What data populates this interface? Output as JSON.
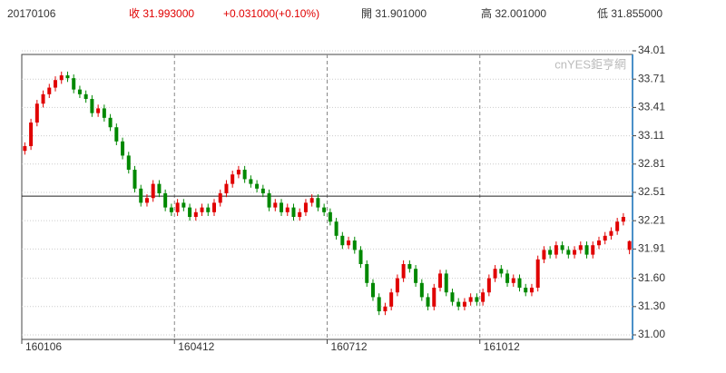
{
  "chart_data": {
    "type": "candlestick",
    "header": {
      "date": "20170106",
      "close": "收 31.993000",
      "change": "+0.031000(+0.10%)",
      "open": "開 31.901000",
      "high": "高 32.001000",
      "low": "低 31.855000"
    },
    "watermark": "cnYES鉅亨網",
    "categories": [
      "160106",
      null,
      null,
      null,
      null,
      null,
      null,
      null,
      null,
      null,
      null,
      null,
      null,
      null,
      null,
      null,
      null,
      null,
      null,
      null,
      null,
      null,
      null,
      null,
      null,
      "160412",
      null,
      null,
      null,
      null,
      null,
      null,
      null,
      null,
      null,
      null,
      null,
      null,
      null,
      null,
      null,
      null,
      null,
      null,
      null,
      null,
      null,
      null,
      null,
      null,
      "160712",
      null,
      null,
      null,
      null,
      null,
      null,
      null,
      null,
      null,
      null,
      null,
      null,
      null,
      null,
      null,
      null,
      null,
      null,
      null,
      null,
      null,
      null,
      null,
      null,
      "161012",
      null,
      null,
      null,
      null,
      null,
      null,
      null,
      null,
      null,
      null,
      null,
      null,
      null,
      null,
      null,
      null,
      null,
      null,
      null,
      null,
      null,
      null,
      null,
      null
    ],
    "open": [
      32.95,
      33.0,
      33.25,
      33.45,
      33.55,
      33.62,
      33.7,
      33.75,
      33.72,
      33.6,
      33.55,
      33.5,
      33.35,
      33.4,
      33.3,
      33.2,
      33.05,
      32.9,
      32.75,
      32.55,
      32.4,
      32.45,
      32.6,
      32.5,
      32.35,
      32.3,
      32.4,
      32.35,
      32.25,
      32.3,
      32.35,
      32.3,
      32.4,
      32.5,
      32.6,
      32.7,
      32.75,
      32.65,
      32.6,
      32.55,
      32.5,
      32.35,
      32.4,
      32.3,
      32.35,
      32.25,
      32.3,
      32.4,
      32.45,
      32.35,
      32.3,
      32.2,
      32.05,
      31.95,
      32.0,
      31.9,
      31.75,
      31.55,
      31.4,
      31.25,
      31.3,
      31.45,
      31.6,
      31.75,
      31.7,
      31.55,
      31.4,
      31.3,
      31.5,
      31.65,
      31.45,
      31.35,
      31.3,
      31.35,
      31.4,
      31.35,
      31.45,
      31.6,
      31.7,
      31.65,
      31.55,
      31.6,
      31.5,
      31.45,
      31.5,
      31.8,
      31.9,
      31.85,
      31.95,
      31.9,
      31.85,
      31.9,
      31.95,
      31.85,
      31.95,
      32.0,
      32.05,
      32.1,
      32.2,
      31.901
    ],
    "high": [
      33.04,
      33.29,
      33.49,
      33.59,
      33.66,
      33.74,
      33.79,
      33.79,
      33.76,
      33.64,
      33.59,
      33.54,
      33.44,
      33.44,
      33.34,
      33.24,
      33.09,
      32.94,
      32.79,
      32.59,
      32.49,
      32.64,
      32.64,
      32.54,
      32.39,
      32.44,
      32.44,
      32.39,
      32.34,
      32.39,
      32.39,
      32.44,
      32.54,
      32.64,
      32.74,
      32.79,
      32.79,
      32.69,
      32.64,
      32.59,
      32.54,
      32.44,
      32.44,
      32.39,
      32.39,
      32.34,
      32.44,
      32.49,
      32.49,
      32.39,
      32.34,
      32.24,
      32.09,
      32.04,
      32.04,
      31.94,
      31.79,
      31.59,
      31.44,
      31.34,
      31.49,
      31.64,
      31.79,
      31.79,
      31.74,
      31.59,
      31.44,
      31.54,
      31.69,
      31.69,
      31.49,
      31.39,
      31.39,
      31.44,
      31.44,
      31.49,
      31.64,
      31.74,
      31.74,
      31.69,
      31.64,
      31.64,
      31.54,
      31.54,
      31.84,
      31.94,
      31.94,
      31.99,
      31.99,
      31.94,
      31.94,
      31.99,
      31.99,
      31.99,
      32.04,
      32.09,
      32.14,
      32.24,
      32.29,
      32.001
    ],
    "low": [
      32.91,
      32.96,
      33.21,
      33.41,
      33.51,
      33.58,
      33.66,
      33.68,
      33.56,
      33.51,
      33.46,
      33.31,
      33.31,
      33.26,
      33.16,
      33.01,
      32.86,
      32.71,
      32.51,
      32.36,
      32.36,
      32.41,
      32.46,
      32.31,
      32.26,
      32.26,
      32.31,
      32.21,
      32.21,
      32.26,
      32.26,
      32.26,
      32.36,
      32.46,
      32.56,
      32.66,
      32.61,
      32.56,
      32.51,
      32.46,
      32.31,
      32.31,
      32.26,
      32.26,
      32.21,
      32.21,
      32.26,
      32.36,
      32.31,
      32.26,
      32.16,
      32.01,
      31.91,
      31.91,
      31.86,
      31.71,
      31.51,
      31.36,
      31.21,
      31.21,
      31.26,
      31.41,
      31.56,
      31.66,
      31.51,
      31.36,
      31.26,
      31.26,
      31.46,
      31.41,
      31.31,
      31.26,
      31.26,
      31.31,
      31.31,
      31.31,
      31.41,
      31.56,
      31.61,
      31.51,
      31.51,
      31.46,
      31.41,
      31.41,
      31.46,
      31.76,
      31.81,
      31.81,
      31.86,
      31.81,
      31.81,
      31.86,
      31.81,
      31.81,
      31.91,
      31.96,
      32.01,
      32.06,
      32.16,
      31.855
    ],
    "close": [
      33.0,
      33.25,
      33.45,
      33.55,
      33.62,
      33.7,
      33.75,
      33.72,
      33.6,
      33.55,
      33.5,
      33.35,
      33.4,
      33.3,
      33.2,
      33.05,
      32.9,
      32.75,
      32.55,
      32.4,
      32.45,
      32.6,
      32.5,
      32.35,
      32.3,
      32.4,
      32.35,
      32.25,
      32.3,
      32.35,
      32.3,
      32.4,
      32.5,
      32.6,
      32.7,
      32.75,
      32.65,
      32.6,
      32.55,
      32.5,
      32.35,
      32.4,
      32.3,
      32.35,
      32.25,
      32.3,
      32.4,
      32.45,
      32.35,
      32.3,
      32.2,
      32.05,
      31.95,
      32.0,
      31.9,
      31.75,
      31.55,
      31.4,
      31.25,
      31.3,
      31.45,
      31.6,
      31.75,
      31.7,
      31.55,
      31.4,
      31.3,
      31.5,
      31.65,
      31.45,
      31.35,
      31.3,
      31.35,
      31.4,
      31.35,
      31.45,
      31.6,
      31.7,
      31.65,
      31.55,
      31.6,
      31.5,
      31.45,
      31.5,
      31.8,
      31.9,
      31.85,
      31.95,
      31.9,
      31.85,
      31.9,
      31.95,
      31.85,
      31.95,
      32.0,
      32.05,
      32.1,
      32.2,
      32.25,
      31.993
    ],
    "up_color": "#e00000",
    "down_color": "#008800",
    "ref_line": 32.47,
    "ylim": [
      31.0,
      34.01
    ],
    "yticks": [
      34.01,
      33.71,
      33.41,
      33.11,
      32.81,
      32.51,
      32.21,
      31.91,
      {
        "value": 31.6,
        "label": "31.60"
      },
      {
        "value": 31.3,
        "label": "31.30"
      },
      {
        "value": 31,
        "label": "31.00"
      }
    ],
    "grid": true
  }
}
